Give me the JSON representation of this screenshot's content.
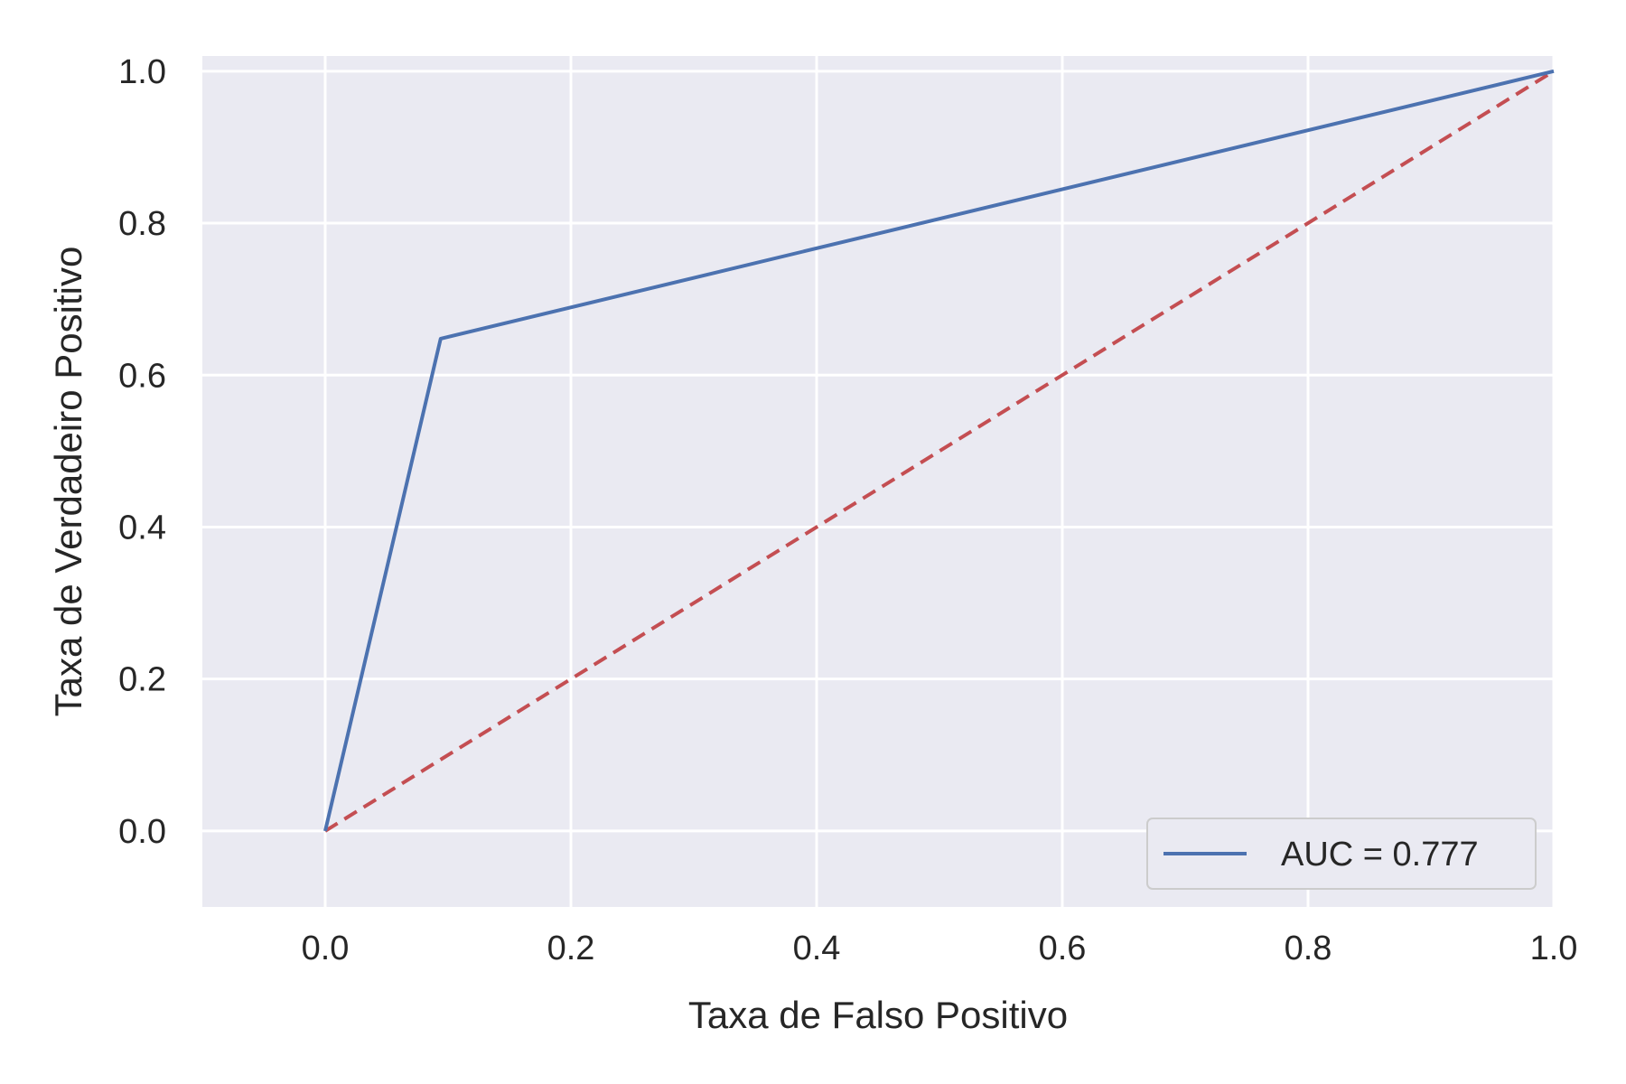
{
  "chart_data": {
    "type": "line",
    "xlabel": "Taxa de Falso Positivo",
    "ylabel": "Taxa de Verdadeiro Positivo",
    "xlim": [
      -0.1,
      1.0
    ],
    "ylim": [
      -0.1,
      1.02
    ],
    "xticks": [
      "0.0",
      "0.2",
      "0.4",
      "0.6",
      "0.8",
      "1.0"
    ],
    "yticks": [
      "0.0",
      "0.2",
      "0.4",
      "0.6",
      "0.8",
      "1.0"
    ],
    "grid": true,
    "legend_position": "lower-right",
    "series": [
      {
        "name": "AUC = 0.777",
        "style": "solid",
        "color": "#4c72b0",
        "x": [
          0.0,
          0.094,
          1.0
        ],
        "y": [
          0.0,
          0.648,
          1.0
        ]
      },
      {
        "style": "dashed",
        "color": "#c44e52",
        "x": [
          0.0,
          1.0
        ],
        "y": [
          0.0,
          1.0
        ]
      }
    ]
  }
}
